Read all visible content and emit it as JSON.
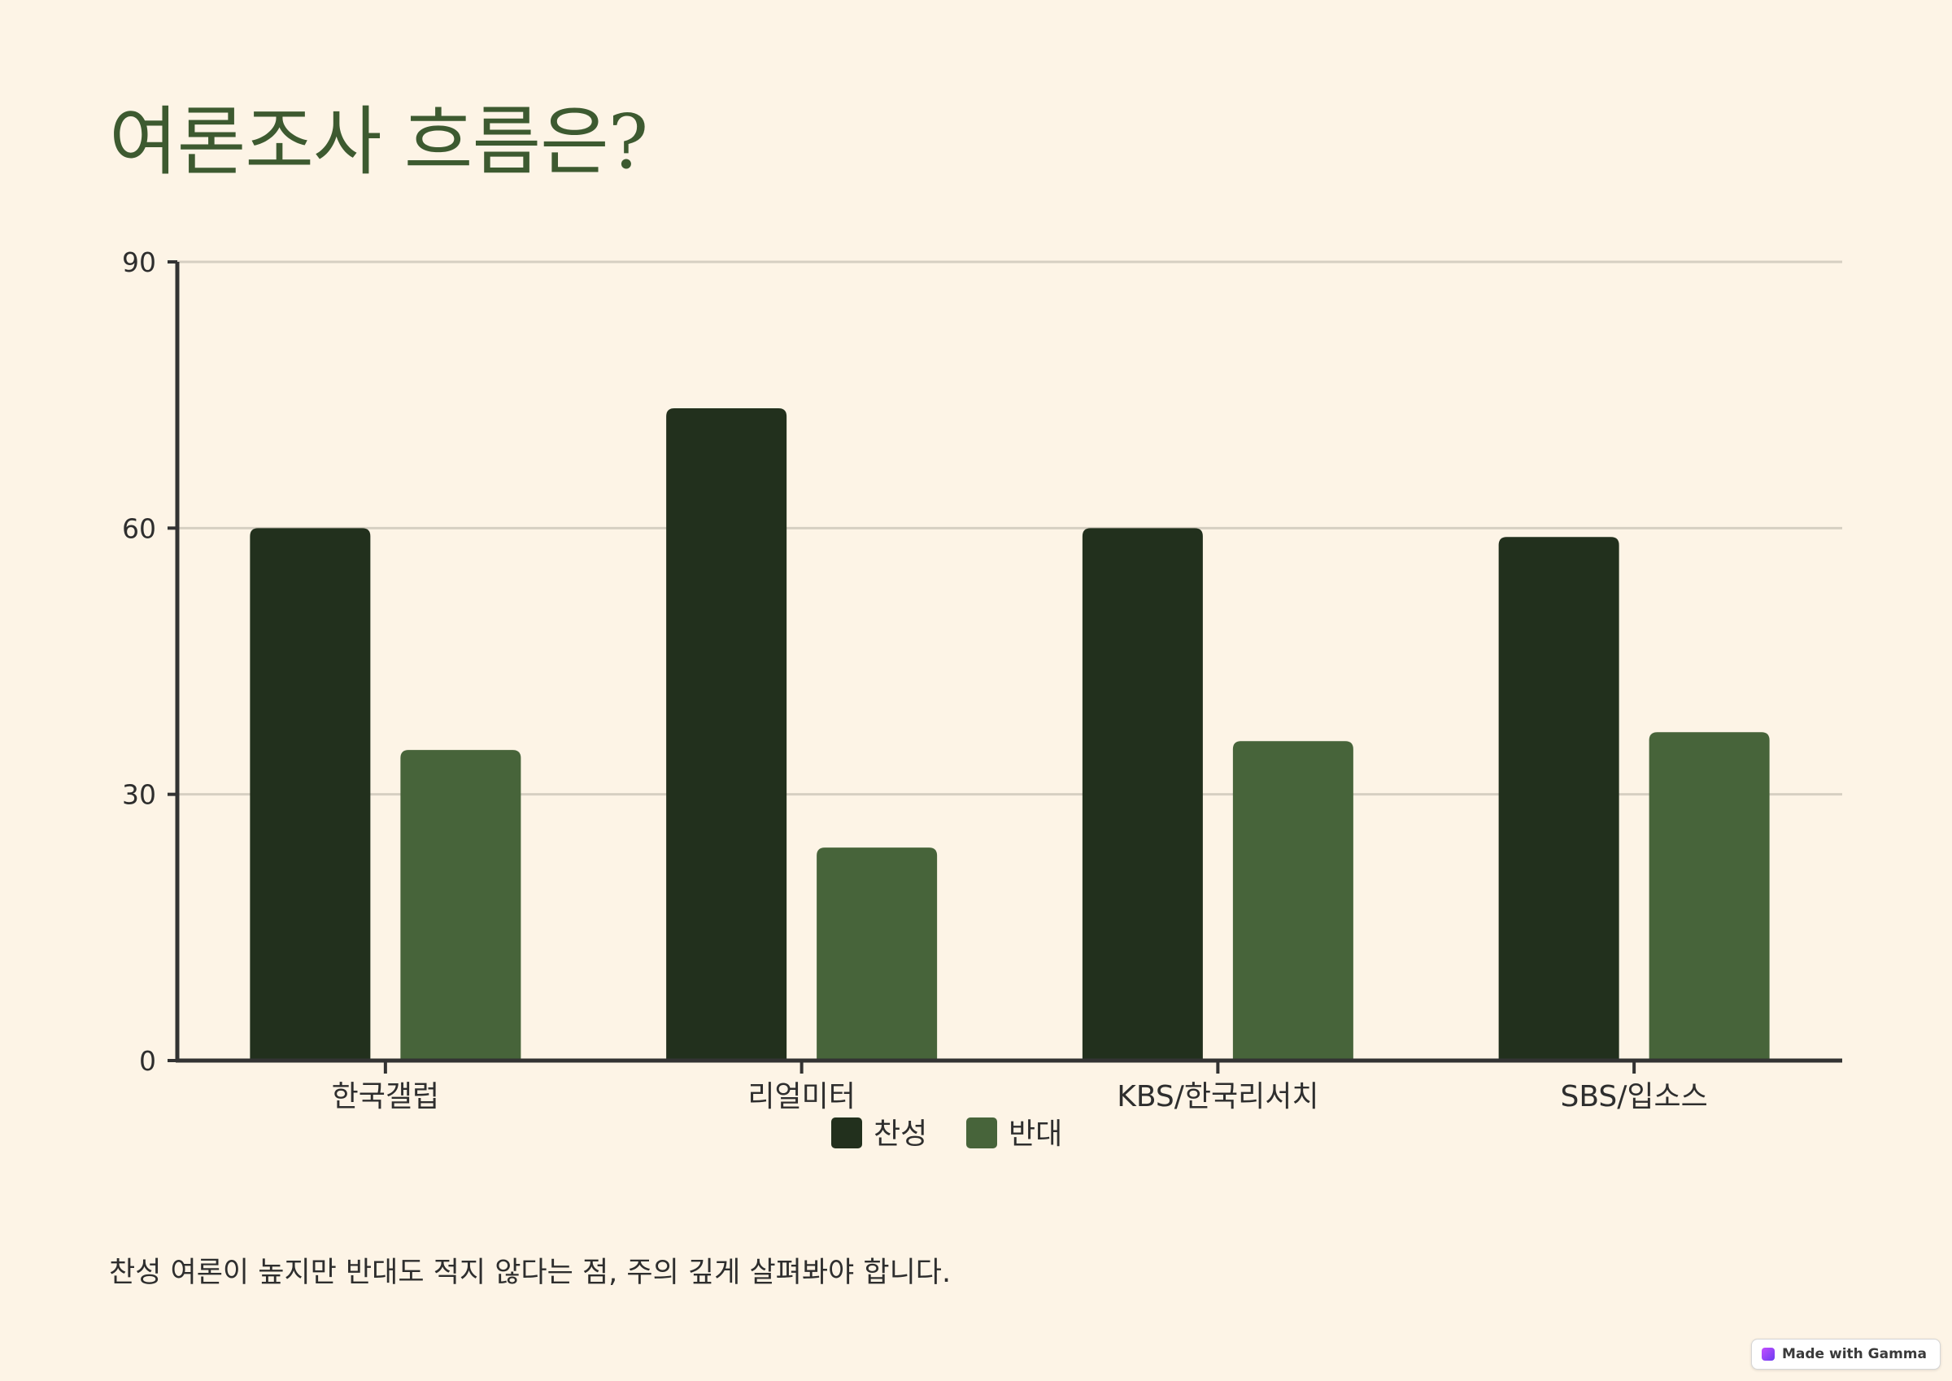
{
  "slide": {
    "title": "여론조사 흐름은?",
    "caption": "찬성 여론이 높지만 반대도 적지 않다는 점, 주의 깊게 살펴봐야 합니다.",
    "badge_label": "Made with Gamma",
    "badge_icon": "gamma-logo-icon"
  },
  "chart_data": {
    "type": "bar",
    "categories": [
      "한국갤럽",
      "리얼미터",
      "KBS/한국리서치",
      "SBS/입소스"
    ],
    "series": [
      {
        "name": "찬성",
        "values": [
          60,
          73.5,
          60,
          59
        ],
        "color": "#22301d"
      },
      {
        "name": "반대",
        "values": [
          35,
          24,
          36,
          37
        ],
        "color": "#47643a"
      }
    ],
    "ylim": [
      0,
      90
    ],
    "yticks": [
      0,
      30,
      60,
      90
    ],
    "grid": true,
    "legend": "bottom-center",
    "xlabel": "",
    "ylabel": ""
  }
}
